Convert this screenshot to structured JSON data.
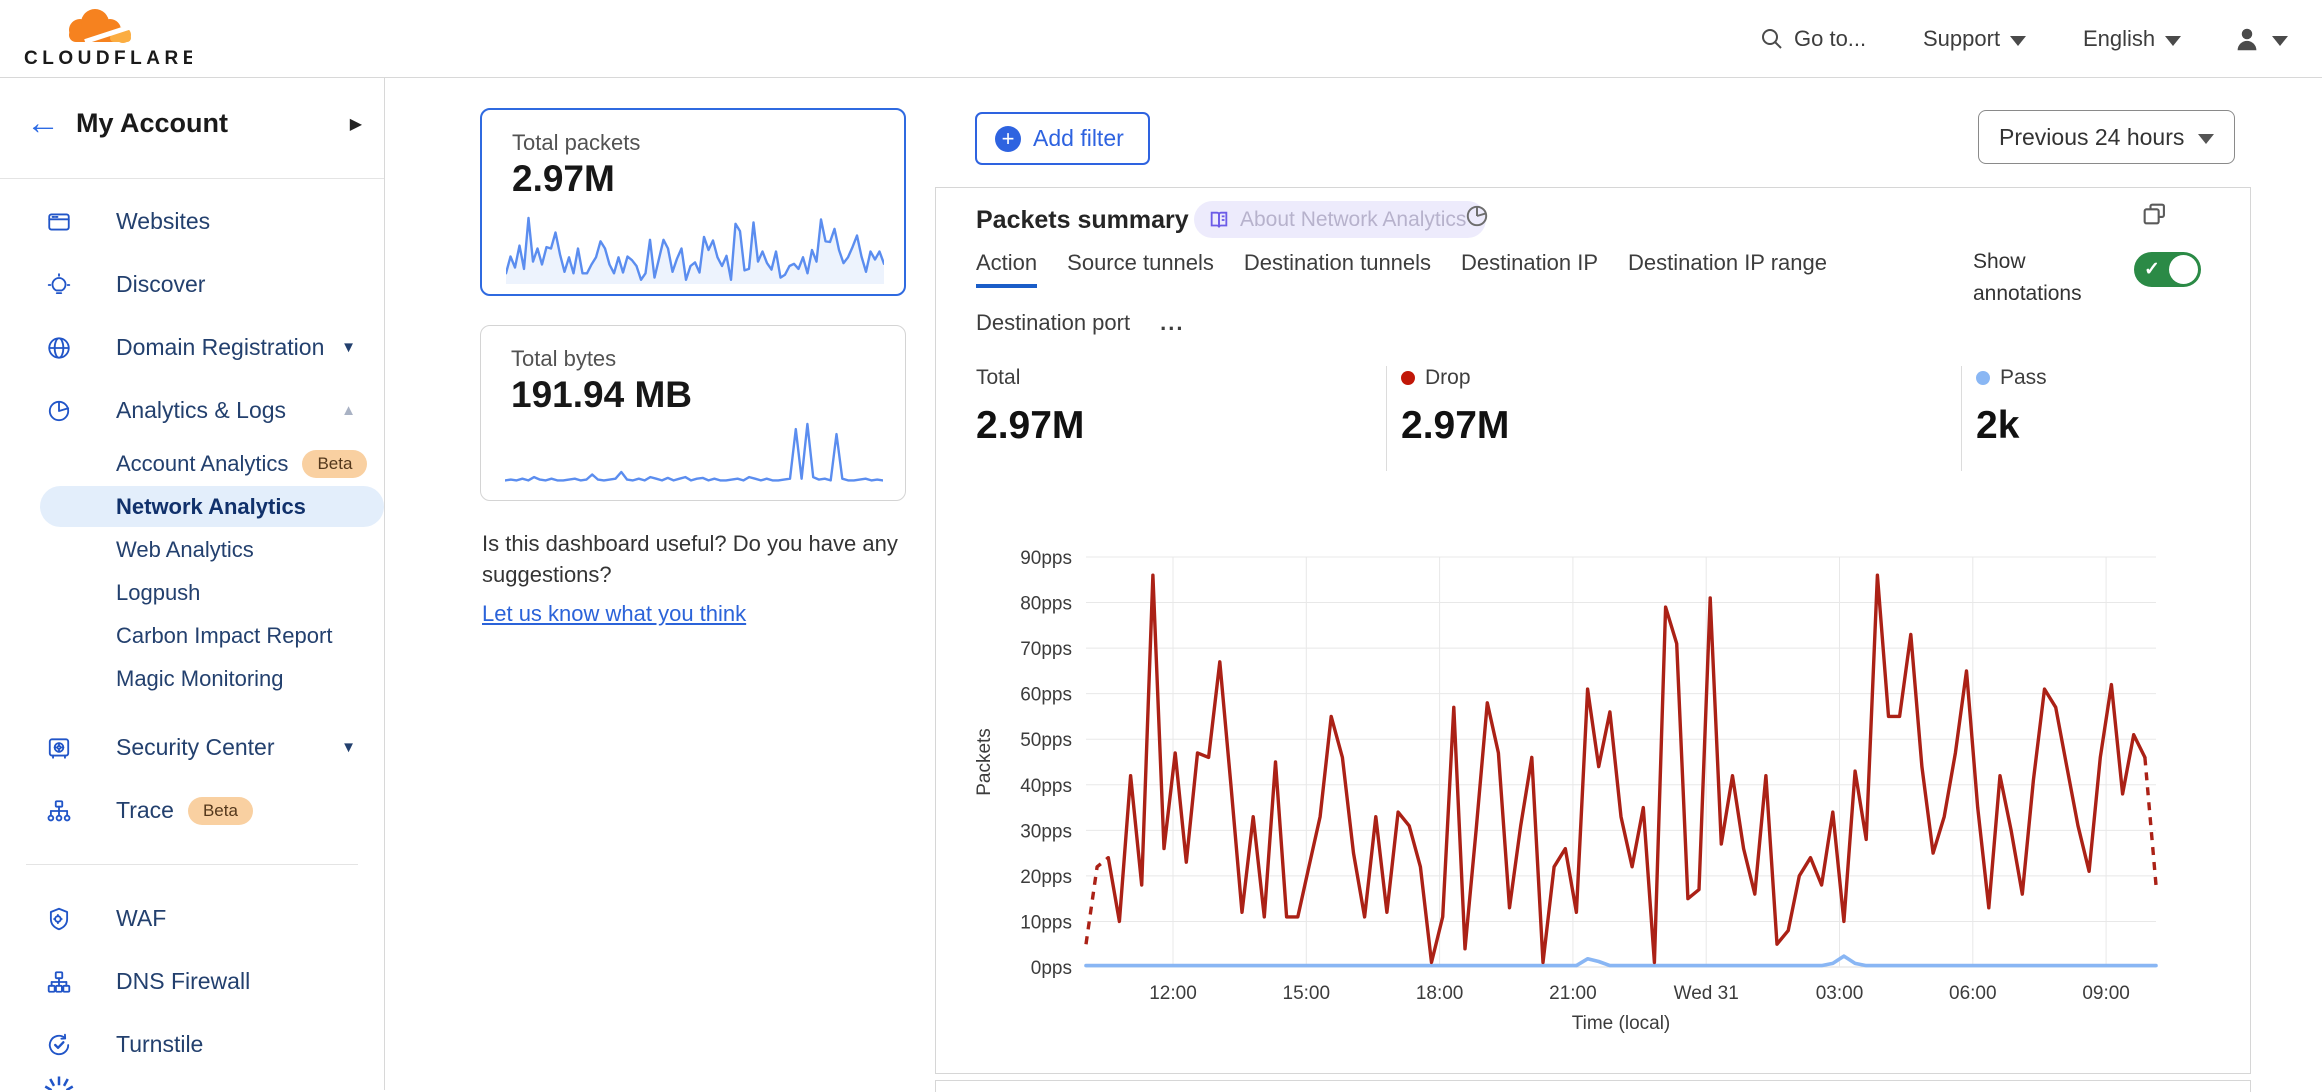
{
  "header": {
    "logo_text": "CLOUDFLARE",
    "goto_label": "Go to...",
    "support_label": "Support",
    "language_label": "English"
  },
  "sidebar": {
    "account_label": "My Account",
    "items": [
      {
        "label": "Websites",
        "icon": "browser"
      },
      {
        "label": "Discover",
        "icon": "bulb"
      },
      {
        "label": "Domain Registration",
        "icon": "globe",
        "chevron": "down"
      },
      {
        "label": "Analytics & Logs",
        "icon": "pie",
        "chevron": "up"
      },
      {
        "label": "Account Analytics",
        "indent": true,
        "beta": "Beta"
      },
      {
        "label": "Network Analytics",
        "indent": true,
        "selected": true
      },
      {
        "label": "Web Analytics",
        "indent": true
      },
      {
        "label": "Logpush",
        "indent": true
      },
      {
        "label": "Carbon Impact Report",
        "indent": true
      },
      {
        "label": "Magic Monitoring",
        "indent": true
      },
      {
        "label": "Security Center",
        "icon": "safe",
        "chevron": "down",
        "gap": true
      },
      {
        "label": "Trace",
        "icon": "trace",
        "beta": "Beta"
      },
      {
        "divider": true
      },
      {
        "label": "WAF",
        "icon": "shield"
      },
      {
        "label": "DNS Firewall",
        "icon": "dnstree"
      },
      {
        "label": "Turnstile",
        "icon": "turnstile"
      },
      {
        "divider": true
      }
    ]
  },
  "cards": {
    "packets": {
      "title": "Total packets",
      "value": "2.97M",
      "spark": [
        12,
        35,
        20,
        50,
        18,
        88,
        28,
        46,
        24,
        48,
        46,
        68,
        38,
        14,
        34,
        12,
        46,
        12,
        12,
        24,
        34,
        56,
        46,
        24,
        12,
        34,
        13,
        35,
        30,
        22,
        3,
        12,
        58,
        6,
        32,
        58,
        46,
        14,
        32,
        46,
        3,
        22,
        27,
        13,
        62,
        44,
        57,
        34,
        22,
        36,
        3,
        80,
        70,
        16,
        18,
        82,
        28,
        42,
        26,
        17,
        42,
        6,
        10,
        22,
        25,
        18,
        34,
        12,
        44,
        28,
        86,
        56,
        55,
        73,
        44,
        26,
        34,
        48,
        64,
        35,
        14,
        42,
        31,
        42,
        25
      ]
    },
    "bytes": {
      "title": "Total bytes",
      "value": "191.94 MB",
      "spark": [
        9,
        10,
        9,
        11,
        9,
        13,
        10,
        9,
        11,
        9,
        9,
        10,
        11,
        9,
        10,
        16,
        10,
        9,
        10,
        11,
        19,
        10,
        9,
        11,
        9,
        13,
        11,
        9,
        12,
        9,
        11,
        13,
        9,
        11,
        12,
        9,
        11,
        9,
        9,
        10,
        11,
        9,
        13,
        11,
        9,
        11,
        9,
        9,
        10,
        11,
        70,
        11,
        76,
        13,
        10,
        11,
        9,
        64,
        11,
        9,
        9,
        10,
        11,
        9,
        10,
        9
      ]
    }
  },
  "feedback": {
    "text": "Is this dashboard useful? Do you have any suggestions?",
    "link": "Let us know what you think"
  },
  "filters": {
    "add_filter_label": "Add filter",
    "time_range_label": "Previous 24 hours"
  },
  "panel": {
    "title": "Packets summary",
    "about_badge": "About Network Analytics",
    "tabs": [
      "Action",
      "Source tunnels",
      "Destination tunnels",
      "Destination IP",
      "Destination IP range",
      "Destination port"
    ],
    "active_tab": "Action",
    "more_label": "...",
    "show_annotations_label": "Show annotations",
    "annotations_on": true,
    "stats": [
      {
        "label": "Total",
        "value": "2.97M",
        "dot": null
      },
      {
        "label": "Drop",
        "value": "2.97M",
        "dot": "#c11708"
      },
      {
        "label": "Pass",
        "value": "2k",
        "dot": "#8ab7f4"
      }
    ]
  },
  "chart_data": {
    "type": "line",
    "title": "Packets summary",
    "xlabel": "Time (local)",
    "ylabel": "Packets",
    "ylim": [
      0,
      90
    ],
    "y_ticks": [
      "0pps",
      "10pps",
      "20pps",
      "30pps",
      "40pps",
      "50pps",
      "60pps",
      "70pps",
      "80pps",
      "90pps"
    ],
    "x_ticks": [
      "12:00",
      "15:00",
      "18:00",
      "21:00",
      "Wed 31",
      "03:00",
      "06:00",
      "09:00"
    ],
    "grid": true,
    "legend_position": "top",
    "series": [
      {
        "name": "Drop",
        "color": "#ab2116",
        "dashed_start": true,
        "dashed_end": true,
        "values": [
          5,
          22,
          24,
          10,
          42,
          18,
          86,
          26,
          47,
          23,
          47,
          46,
          67,
          40,
          12,
          33,
          11,
          45,
          11,
          11,
          22,
          33,
          55,
          46,
          25,
          11,
          33,
          12,
          34,
          31,
          22,
          1,
          11,
          57,
          4,
          30,
          58,
          47,
          13,
          31,
          46,
          1,
          22,
          26,
          12,
          61,
          44,
          56,
          33,
          22,
          35,
          1,
          79,
          71,
          15,
          17,
          81,
          27,
          42,
          26,
          16,
          42,
          5,
          8,
          20,
          24,
          18,
          34,
          10,
          43,
          28,
          86,
          55,
          55,
          73,
          44,
          25,
          33,
          47,
          65,
          35,
          13,
          42,
          30,
          16,
          41,
          61,
          57,
          44,
          31,
          21,
          46,
          62,
          38,
          51,
          46,
          18
        ]
      },
      {
        "name": "Pass",
        "color": "#89b6f4",
        "values": [
          0.3,
          0.3,
          0.3,
          0.3,
          0.3,
          0.3,
          0.3,
          0.3,
          0.3,
          0.3,
          0.3,
          0.3,
          0.3,
          0.3,
          0.3,
          0.3,
          0.3,
          0.3,
          0.3,
          0.3,
          0.3,
          0.3,
          0.3,
          0.3,
          0.3,
          0.3,
          0.3,
          0.3,
          0.3,
          0.3,
          0.3,
          0.3,
          0.3,
          0.3,
          0.3,
          0.3,
          0.3,
          0.3,
          0.3,
          0.3,
          0.3,
          0.3,
          0.3,
          0.3,
          0.3,
          1.8,
          1.2,
          0.3,
          0.3,
          0.3,
          0.3,
          0.3,
          0.3,
          0.3,
          0.3,
          0.3,
          0.3,
          0.3,
          0.3,
          0.3,
          0.3,
          0.3,
          0.3,
          0.3,
          0.3,
          0.3,
          0.3,
          0.8,
          2.4,
          0.8,
          0.3,
          0.3,
          0.3,
          0.3,
          0.3,
          0.3,
          0.3,
          0.3,
          0.3,
          0.3,
          0.3,
          0.3,
          0.3,
          0.3,
          0.3,
          0.3,
          0.3,
          0.3,
          0.3,
          0.3,
          0.3,
          0.3,
          0.3,
          0.3,
          0.3,
          0.3,
          0.3
        ]
      }
    ]
  }
}
